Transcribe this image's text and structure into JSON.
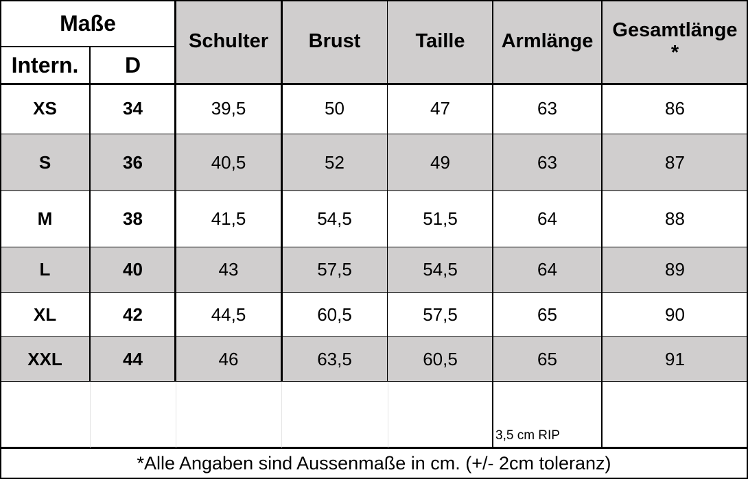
{
  "table": {
    "group_header": "Maße",
    "sub_headers": [
      "Intern.",
      "D"
    ],
    "headers": [
      "Schulter",
      "Brust",
      "Taille",
      "Armlänge",
      "Gesamtlänge\n*"
    ],
    "rows": [
      [
        "XS",
        "34",
        "39,5",
        "50",
        "47",
        "63",
        "86"
      ],
      [
        "S",
        "36",
        "40,5",
        "52",
        "49",
        "63",
        "87"
      ],
      [
        "M",
        "38",
        "41,5",
        "54,5",
        "51,5",
        "64",
        "88"
      ],
      [
        "L",
        "40",
        "43",
        "57,5",
        "54,5",
        "64",
        "89"
      ],
      [
        "XL",
        "42",
        "44,5",
        "60,5",
        "57,5",
        "65",
        "90"
      ],
      [
        "XXL",
        "44",
        "46",
        "63,5",
        "60,5",
        "65",
        "91"
      ]
    ],
    "note": "3,5 cm RIP",
    "footer": "*Alle Angaben sind Aussenmaße in cm. (+/- 2cm toleranz)"
  }
}
